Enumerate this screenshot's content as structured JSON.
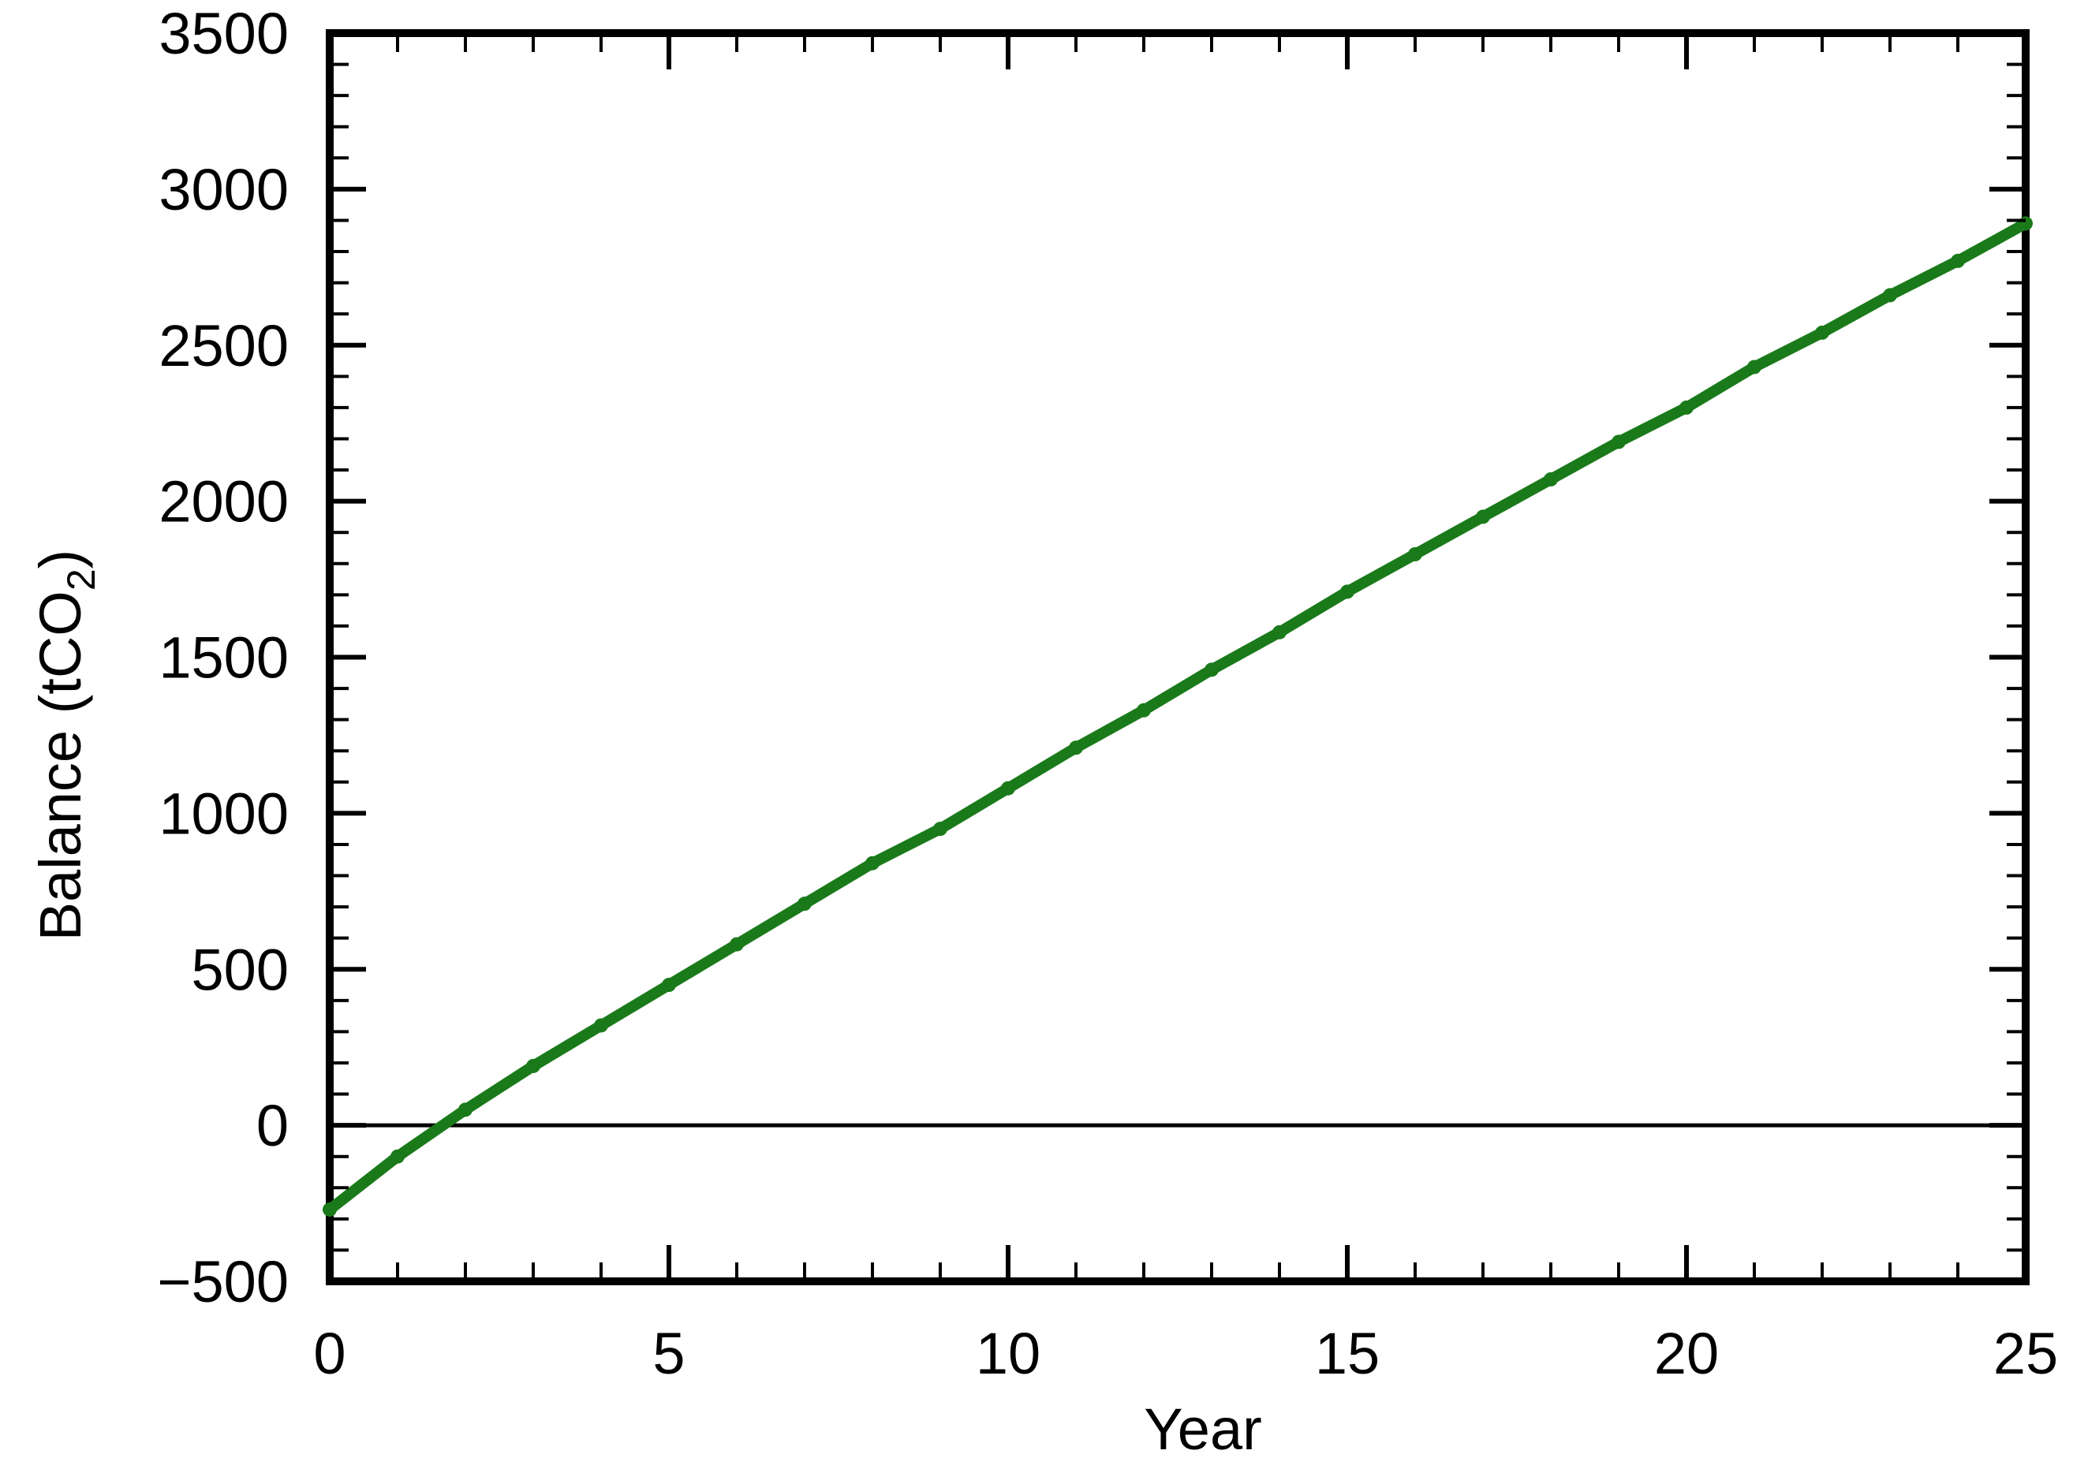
{
  "chart_data": {
    "type": "line",
    "xlabel": "Year",
    "ylabel": "Balance (tCO",
    "ylabel_sub": "2",
    "ylabel_end": ")",
    "xlim": [
      0,
      25
    ],
    "ylim": [
      -500,
      3500
    ],
    "x_ticks": [
      0,
      5,
      10,
      15,
      20,
      25
    ],
    "x_tick_labels": [
      "0",
      "5",
      "10",
      "15",
      "20",
      "25"
    ],
    "y_ticks": [
      -500,
      0,
      500,
      1000,
      1500,
      2000,
      2500,
      3000,
      3500
    ],
    "y_tick_labels": [
      "−500",
      "0",
      "500",
      "1000",
      "1500",
      "2000",
      "2500",
      "3000",
      "3500"
    ],
    "reference_line_y": 0,
    "grid": false,
    "series": [
      {
        "color": "#1a7a1a",
        "x": [
          0,
          1,
          2,
          3,
          4,
          5,
          6,
          7,
          8,
          9,
          10,
          11,
          12,
          13,
          14,
          15,
          16,
          17,
          18,
          19,
          20,
          21,
          22,
          23,
          24,
          25
        ],
        "y": [
          -270,
          -100,
          50,
          190,
          320,
          450,
          580,
          710,
          840,
          950,
          1080,
          1210,
          1330,
          1460,
          1580,
          1710,
          1830,
          1950,
          2070,
          2190,
          2300,
          2430,
          2540,
          2660,
          2770,
          2890
        ]
      }
    ]
  }
}
